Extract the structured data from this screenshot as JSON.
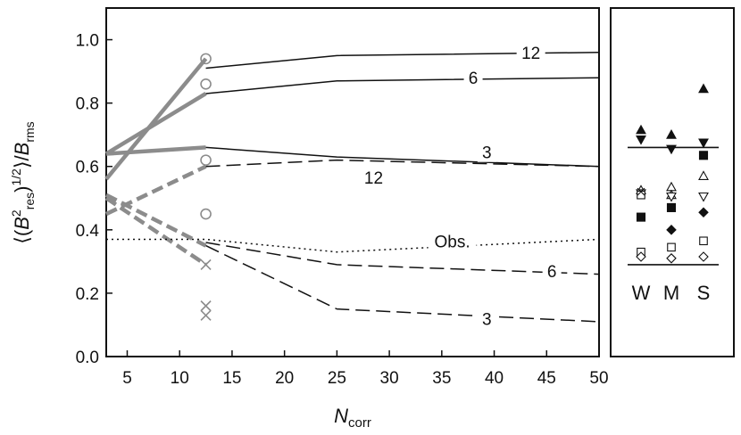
{
  "chart_data": [
    {
      "type": "line",
      "xlabel": "N_corr",
      "xlabel_main": "N",
      "xlabel_sub": "corr",
      "ylabel": "⟨(B²res)^1/2⟩/Brms",
      "xlim": [
        3,
        50
      ],
      "ylim": [
        0.0,
        1.1
      ],
      "x_ticks": [
        5,
        10,
        15,
        20,
        25,
        30,
        35,
        40,
        45,
        50
      ],
      "y_ticks": [
        "0.0",
        "0.2",
        "0.4",
        "0.6",
        "0.8",
        "1.0"
      ],
      "series": [
        {
          "name": "12",
          "style": "solid",
          "x": [
            12.5,
            25,
            50
          ],
          "y": [
            0.91,
            0.95,
            0.96
          ],
          "label_at": [
            43.5,
            0.96
          ]
        },
        {
          "name": "6",
          "style": "solid",
          "x": [
            12.5,
            25,
            50
          ],
          "y": [
            0.83,
            0.87,
            0.88
          ],
          "label_at": [
            38,
            0.88
          ]
        },
        {
          "name": "3",
          "style": "solid",
          "x": [
            12.5,
            25,
            50
          ],
          "y": [
            0.66,
            0.63,
            0.6
          ],
          "label_at": [
            39.3,
            0.645
          ]
        },
        {
          "name": "12",
          "style": "dashed",
          "x": [
            12.5,
            25,
            50
          ],
          "y": [
            0.6,
            0.62,
            0.6
          ],
          "label_at": [
            28.5,
            0.565
          ]
        },
        {
          "name": "6",
          "style": "dashed",
          "x": [
            12.5,
            25,
            50
          ],
          "y": [
            0.36,
            0.29,
            0.26
          ],
          "label_at": [
            45.5,
            0.27
          ]
        },
        {
          "name": "3",
          "style": "dashed",
          "x": [
            12.5,
            25,
            50
          ],
          "y": [
            0.35,
            0.15,
            0.11
          ],
          "label_at": [
            39.3,
            0.12
          ]
        },
        {
          "name": "Obs.",
          "style": "dotted",
          "x": [
            3,
            12.5,
            25,
            50
          ],
          "y": [
            0.37,
            0.37,
            0.33,
            0.37
          ],
          "label_at": [
            36,
            0.365
          ]
        }
      ],
      "grey_lines": [
        {
          "style": "solid",
          "x": [
            3,
            12.5
          ],
          "y": [
            0.56,
            0.94
          ]
        },
        {
          "style": "solid",
          "x": [
            3,
            12.5
          ],
          "y": [
            0.64,
            0.83
          ]
        },
        {
          "style": "solid",
          "x": [
            3,
            12.5
          ],
          "y": [
            0.64,
            0.66
          ]
        },
        {
          "style": "dashed",
          "x": [
            3,
            12.5
          ],
          "y": [
            0.45,
            0.6
          ]
        },
        {
          "style": "dashed",
          "x": [
            3,
            12.5
          ],
          "y": [
            0.51,
            0.35
          ]
        },
        {
          "style": "dashed",
          "x": [
            3,
            12.5
          ],
          "y": [
            0.5,
            0.29
          ]
        }
      ],
      "grey_circles": {
        "x": 12.5,
        "y": [
          0.94,
          0.86,
          0.62,
          0.45
        ]
      },
      "grey_crosses": {
        "x": 12.5,
        "y": [
          0.29,
          0.16,
          0.13
        ]
      },
      "colors": {
        "axis": "#111111",
        "grey": "#8c8c8c"
      }
    },
    {
      "type": "scatter",
      "categories": [
        "W",
        "M",
        "S"
      ],
      "ylim": [
        0.0,
        1.1
      ],
      "reference_lines": [
        0.66,
        0.29
      ],
      "points": [
        {
          "category": "W",
          "marker": "filled-triangle-up",
          "y": 0.715
        },
        {
          "category": "W",
          "marker": "filled-triangle-down",
          "y": 0.685
        },
        {
          "category": "W",
          "marker": "open-triangle-up",
          "y": 0.525
        },
        {
          "category": "W",
          "marker": "open-triangle-down",
          "y": 0.515
        },
        {
          "category": "W",
          "marker": "open-square",
          "y": 0.51
        },
        {
          "category": "W",
          "marker": "cross",
          "y": 0.52
        },
        {
          "category": "W",
          "marker": "filled-square",
          "y": 0.44
        },
        {
          "category": "W",
          "marker": "open-square",
          "y": 0.33
        },
        {
          "category": "W",
          "marker": "open-diamond",
          "y": 0.315
        },
        {
          "category": "M",
          "marker": "filled-triangle-up",
          "y": 0.7
        },
        {
          "category": "M",
          "marker": "filled-triangle-down",
          "y": 0.655
        },
        {
          "category": "M",
          "marker": "open-triangle-up",
          "y": 0.535
        },
        {
          "category": "M",
          "marker": "open-triangle-up",
          "y": 0.51
        },
        {
          "category": "M",
          "marker": "open-triangle-down",
          "y": 0.505
        },
        {
          "category": "M",
          "marker": "filled-square",
          "y": 0.47
        },
        {
          "category": "M",
          "marker": "filled-diamond",
          "y": 0.4
        },
        {
          "category": "M",
          "marker": "open-square",
          "y": 0.345
        },
        {
          "category": "M",
          "marker": "open-diamond",
          "y": 0.31
        },
        {
          "category": "S",
          "marker": "filled-triangle-up",
          "y": 0.845
        },
        {
          "category": "S",
          "marker": "filled-triangle-down",
          "y": 0.675
        },
        {
          "category": "S",
          "marker": "filled-square",
          "y": 0.635
        },
        {
          "category": "S",
          "marker": "open-triangle-up",
          "y": 0.57
        },
        {
          "category": "S",
          "marker": "open-triangle-down",
          "y": 0.505
        },
        {
          "category": "S",
          "marker": "filled-diamond",
          "y": 0.455
        },
        {
          "category": "S",
          "marker": "open-square",
          "y": 0.365
        },
        {
          "category": "S",
          "marker": "open-diamond",
          "y": 0.315
        }
      ]
    }
  ]
}
